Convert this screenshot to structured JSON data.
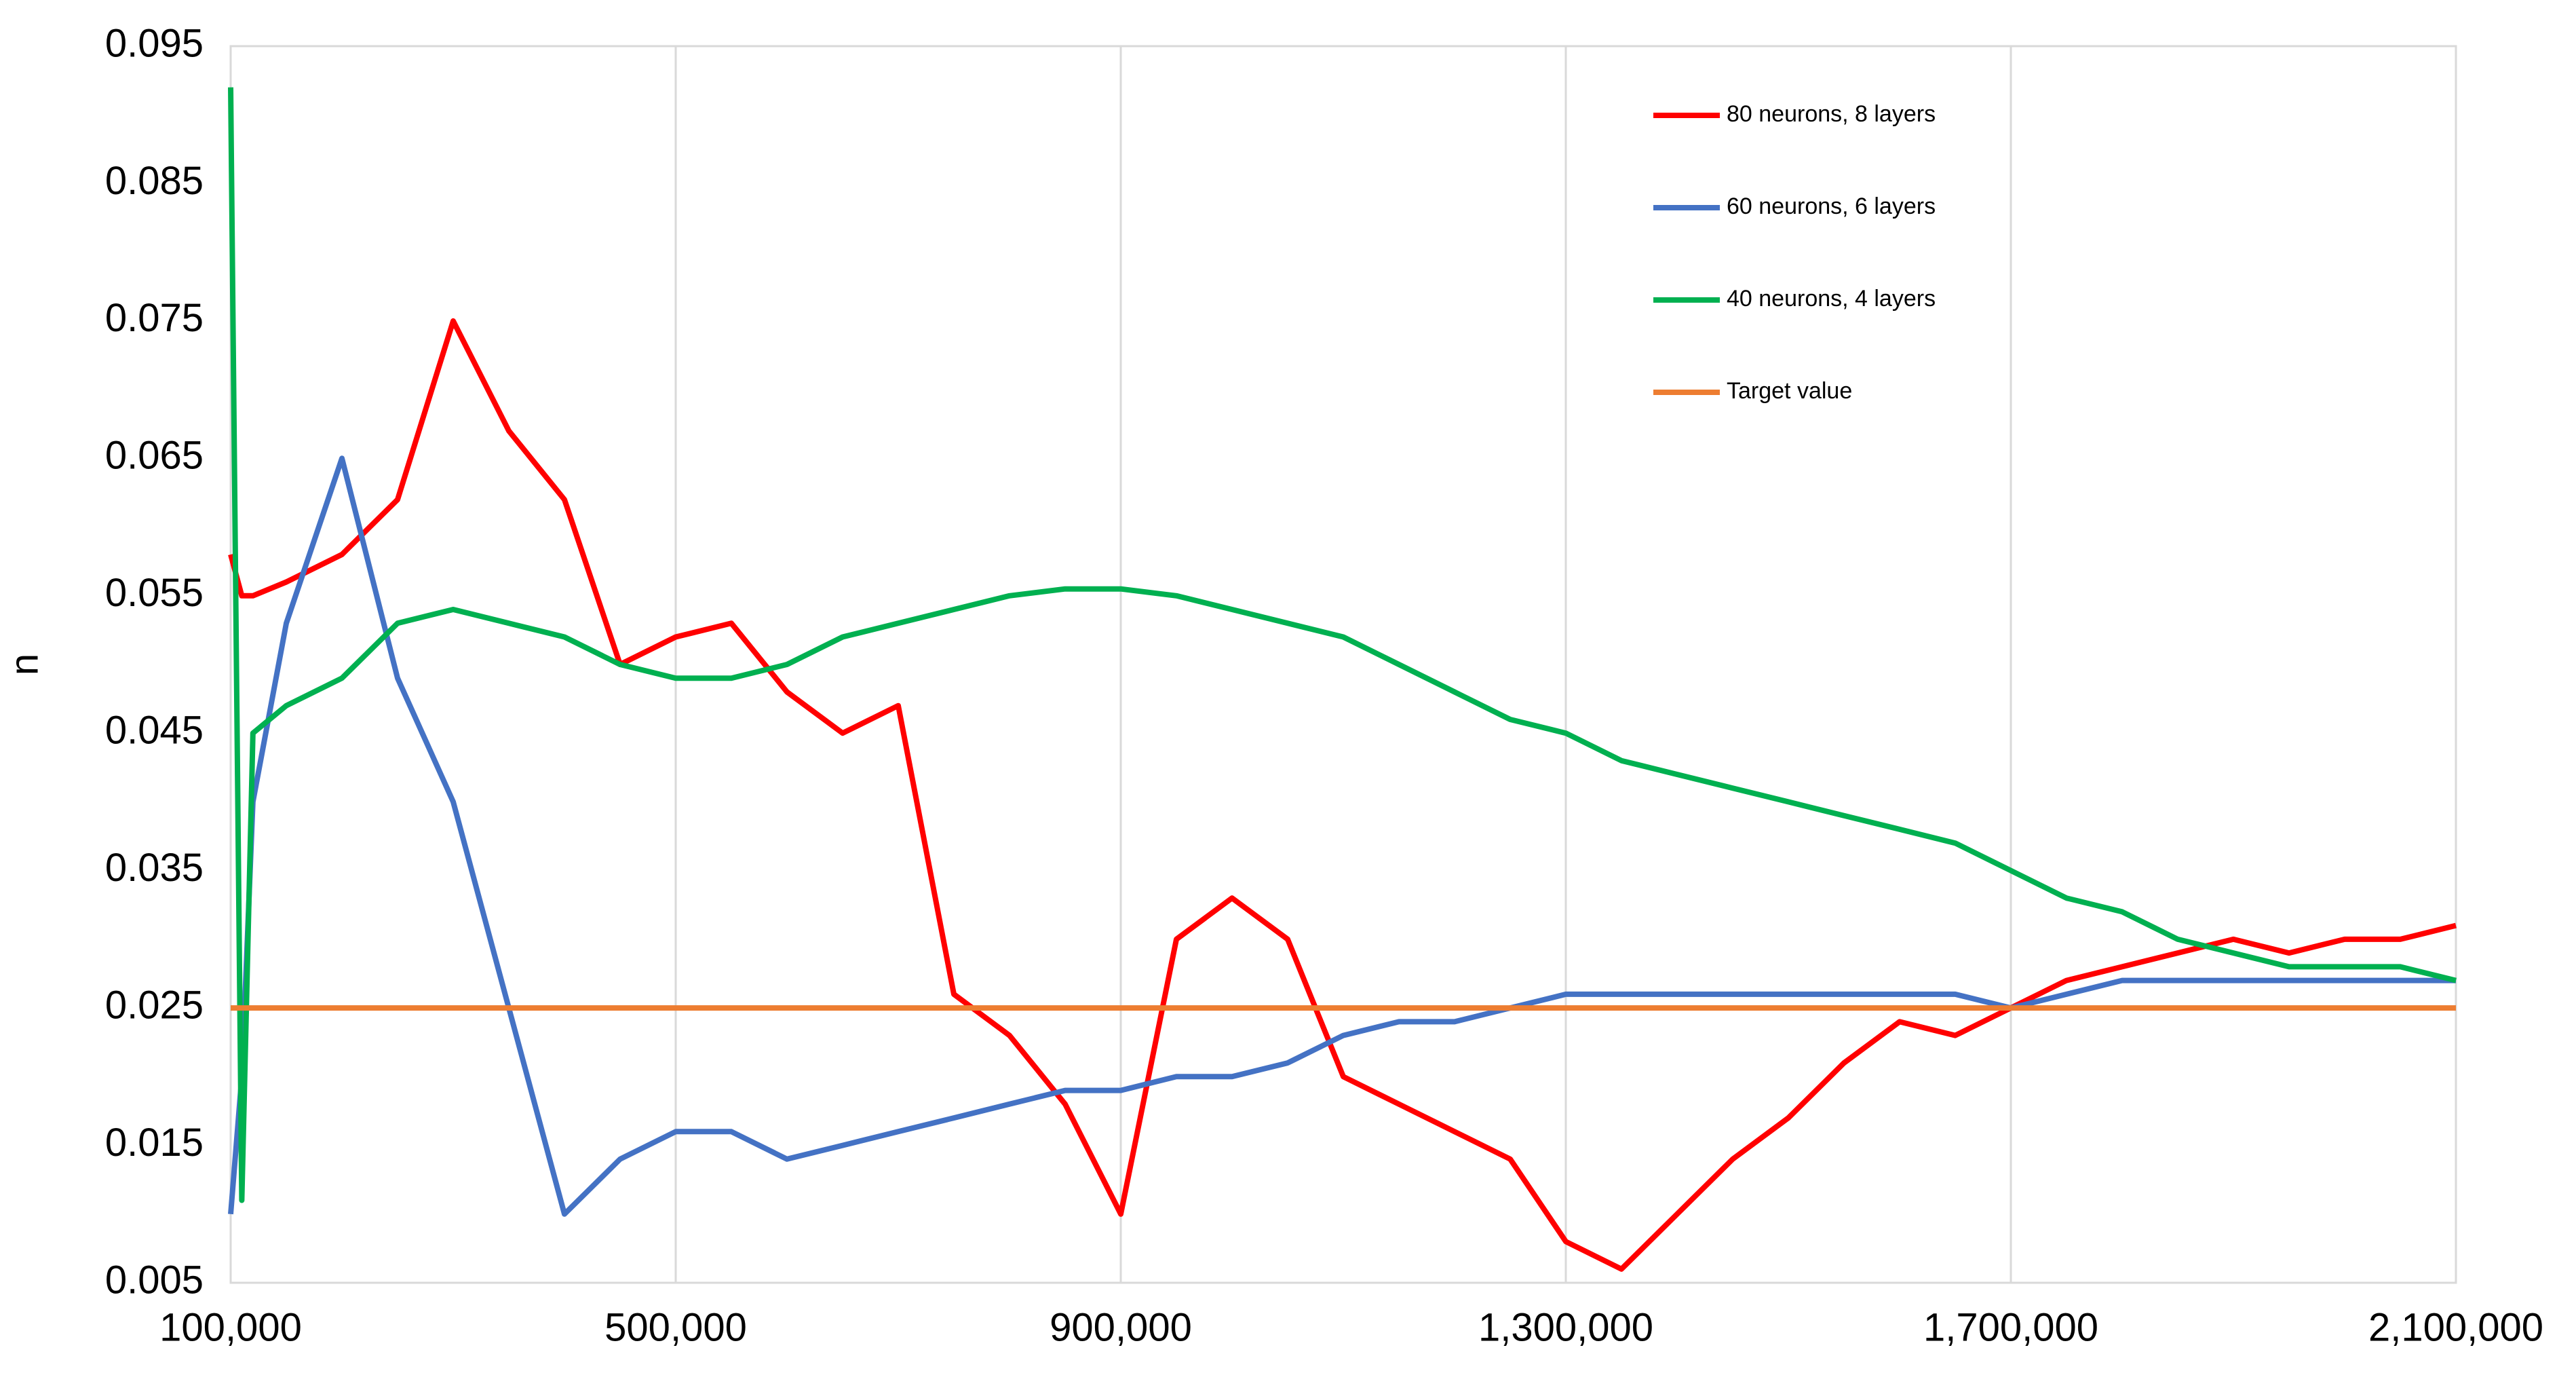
{
  "chart_data": {
    "type": "line",
    "y_label": "n",
    "x": [
      100000,
      110000,
      120000,
      150000,
      200000,
      250000,
      300000,
      350000,
      400000,
      450000,
      500000,
      550000,
      600000,
      650000,
      700000,
      750000,
      800000,
      850000,
      900000,
      950000,
      1000000,
      1050000,
      1100000,
      1150000,
      1200000,
      1250000,
      1300000,
      1350000,
      1400000,
      1450000,
      1500000,
      1550000,
      1600000,
      1650000,
      1700000,
      1750000,
      1800000,
      1850000,
      1900000,
      1950000,
      2000000,
      2050000,
      2100000
    ],
    "series": [
      {
        "name": "80 neurons, 8 layers",
        "color": "#ff0000",
        "values": [
          0.058,
          0.055,
          0.055,
          0.056,
          0.058,
          0.062,
          0.075,
          0.067,
          0.062,
          0.05,
          0.052,
          0.053,
          0.048,
          0.045,
          0.047,
          0.026,
          0.023,
          0.018,
          0.01,
          0.03,
          0.033,
          0.03,
          0.02,
          0.018,
          0.016,
          0.014,
          0.008,
          0.006,
          0.01,
          0.014,
          0.017,
          0.021,
          0.024,
          0.023,
          0.025,
          0.027,
          0.028,
          0.029,
          0.03,
          0.029,
          0.03,
          0.03,
          0.031
        ]
      },
      {
        "name": "60 neurons, 6 layers",
        "color": "#4472c4",
        "values": [
          0.01,
          0.02,
          0.04,
          0.053,
          0.065,
          0.049,
          0.04,
          0.025,
          0.01,
          0.014,
          0.016,
          0.016,
          0.014,
          0.015,
          0.016,
          0.017,
          0.018,
          0.019,
          0.019,
          0.02,
          0.02,
          0.021,
          0.023,
          0.024,
          0.024,
          0.025,
          0.026,
          0.026,
          0.026,
          0.026,
          0.026,
          0.026,
          0.026,
          0.026,
          0.025,
          0.026,
          0.027,
          0.027,
          0.027,
          0.027,
          0.027,
          0.027,
          0.027
        ]
      },
      {
        "name": "40 neurons, 4 layers",
        "color": "#00b050",
        "values": [
          0.092,
          0.011,
          0.045,
          0.047,
          0.049,
          0.053,
          0.054,
          0.053,
          0.052,
          0.05,
          0.049,
          0.049,
          0.05,
          0.052,
          0.053,
          0.054,
          0.055,
          0.0555,
          0.0555,
          0.055,
          0.054,
          0.053,
          0.052,
          0.05,
          0.048,
          0.046,
          0.045,
          0.043,
          0.042,
          0.041,
          0.04,
          0.039,
          0.038,
          0.037,
          0.035,
          0.033,
          0.032,
          0.03,
          0.029,
          0.028,
          0.028,
          0.028,
          0.027
        ]
      },
      {
        "name": "Target value",
        "color": "#ed7d31",
        "values": [
          0.025,
          0.025,
          0.025,
          0.025,
          0.025,
          0.025,
          0.025,
          0.025,
          0.025,
          0.025,
          0.025,
          0.025,
          0.025,
          0.025,
          0.025,
          0.025,
          0.025,
          0.025,
          0.025,
          0.025,
          0.025,
          0.025,
          0.025,
          0.025,
          0.025,
          0.025,
          0.025,
          0.025,
          0.025,
          0.025,
          0.025,
          0.025,
          0.025,
          0.025,
          0.025,
          0.025,
          0.025,
          0.025,
          0.025,
          0.025,
          0.025,
          0.025,
          0.025
        ]
      }
    ],
    "xlim": [
      100000,
      2100000
    ],
    "xticks": [
      {
        "value": 100000,
        "label": "100,000"
      },
      {
        "value": 500000,
        "label": "500,000"
      },
      {
        "value": 900000,
        "label": "900,000"
      },
      {
        "value": 1300000,
        "label": "1,300,000"
      },
      {
        "value": 1700000,
        "label": "1,700,000"
      },
      {
        "value": 2100000,
        "label": "2,100,000"
      }
    ],
    "ylim": [
      0.005,
      0.095
    ],
    "yticks": [
      0.005,
      0.015,
      0.025,
      0.035,
      0.045,
      0.055,
      0.065,
      0.075,
      0.085,
      0.095
    ],
    "grid": "x",
    "legend": "top-right"
  }
}
